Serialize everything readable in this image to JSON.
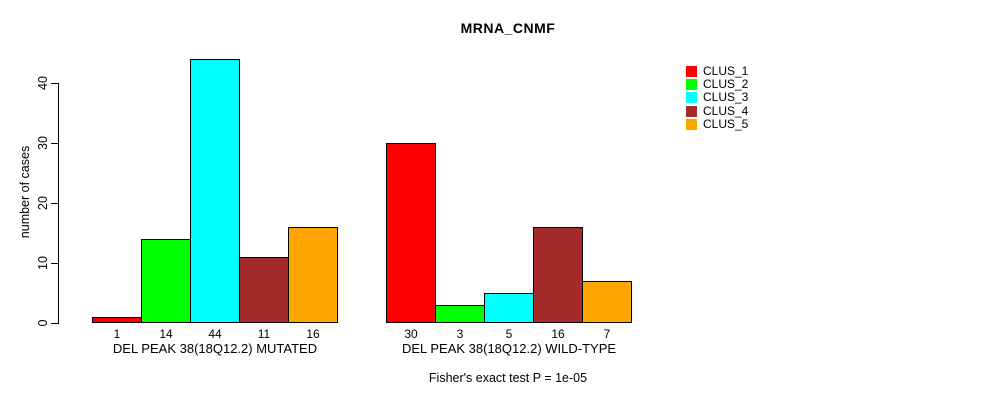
{
  "chart_data": {
    "type": "bar",
    "title": "MRNA_CNMF",
    "ylabel": "number of cases",
    "xlabel": "",
    "yticks": [
      0,
      10,
      20,
      30,
      40
    ],
    "ylim": [
      0,
      44
    ],
    "grid": false,
    "legend_position": "right",
    "categories": [
      "DEL PEAK 38(18Q12.2) MUTATED",
      "DEL PEAK 38(18Q12.2) WILD-TYPE"
    ],
    "series": [
      {
        "name": "CLUS_1",
        "color": "#ff0000",
        "values": [
          1,
          30
        ]
      },
      {
        "name": "CLUS_2",
        "color": "#00ff00",
        "values": [
          14,
          3
        ]
      },
      {
        "name": "CLUS_3",
        "color": "#00ffff",
        "values": [
          44,
          5
        ]
      },
      {
        "name": "CLUS_4",
        "color": "#a52a2a",
        "values": [
          11,
          16
        ]
      },
      {
        "name": "CLUS_5",
        "color": "#ffa500",
        "values": [
          16,
          7
        ]
      }
    ],
    "groups": [
      {
        "label": "DEL PEAK 38(18Q12.2) MUTATED",
        "values": [
          1,
          14,
          44,
          11,
          16
        ]
      },
      {
        "label": "DEL PEAK 38(18Q12.2) WILD-TYPE",
        "values": [
          30,
          3,
          5,
          16,
          7
        ]
      }
    ],
    "bar_colors": [
      "#ff0000",
      "#00ff00",
      "#00ffff",
      "#a52a2a",
      "#ffa500"
    ],
    "legend": [
      {
        "label": "CLUS_1",
        "color": "#ff0000"
      },
      {
        "label": "CLUS_2",
        "color": "#00ff00"
      },
      {
        "label": "CLUS_3",
        "color": "#00ffff"
      },
      {
        "label": "CLUS_4",
        "color": "#a52a2a"
      },
      {
        "label": "CLUS_5",
        "color": "#ffa500"
      }
    ],
    "footer": "Fisher's exact test P = 1e-05",
    "colors": {
      "axis": "#000000",
      "background": "#ffffff",
      "text": "#000000"
    }
  }
}
